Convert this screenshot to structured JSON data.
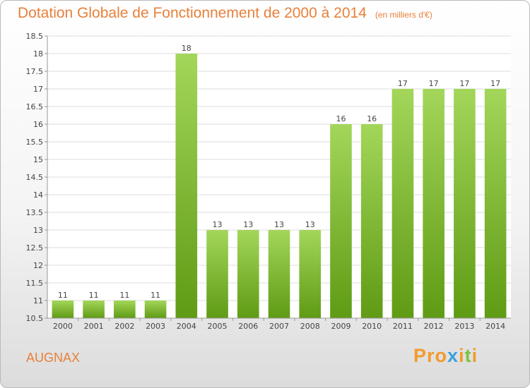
{
  "title": "Dotation Globale de Fonctionnement de 2000 à 2014",
  "unit": "(en milliers d'€)",
  "commune": "AUGNAX",
  "logo": {
    "text": "Proxiti",
    "colors": [
      "#f39a2c",
      "#f39a2c",
      "#f39a2c",
      "#3aa1dc",
      "#f39a2c",
      "#7cc242",
      "#f39a2c"
    ]
  },
  "colors": {
    "title": "#e8803a",
    "bar_light": "#a3d65a",
    "bar_dark": "#5f9b14",
    "grid": "#dddddd"
  },
  "chart_data": {
    "type": "bar",
    "title": "Dotation Globale de Fonctionnement de 2000 à 2014",
    "subtitle": "(en milliers d'€)",
    "xlabel": "",
    "ylabel": "",
    "ylim": [
      10.5,
      18.5
    ],
    "yticks": [
      "10.5",
      "11",
      "11.5",
      "12",
      "12.5",
      "13",
      "13.5",
      "14",
      "14.5",
      "15",
      "15.5",
      "16",
      "16.5",
      "17",
      "17.5",
      "18",
      "18.5"
    ],
    "categories": [
      "2000",
      "2001",
      "2002",
      "2003",
      "2004",
      "2005",
      "2006",
      "2007",
      "2008",
      "2009",
      "2010",
      "2011",
      "2012",
      "2013",
      "2014"
    ],
    "values": [
      11,
      11,
      11,
      11,
      18,
      13,
      13,
      13,
      13,
      16,
      16,
      17,
      17,
      17,
      17
    ],
    "grid": true
  }
}
